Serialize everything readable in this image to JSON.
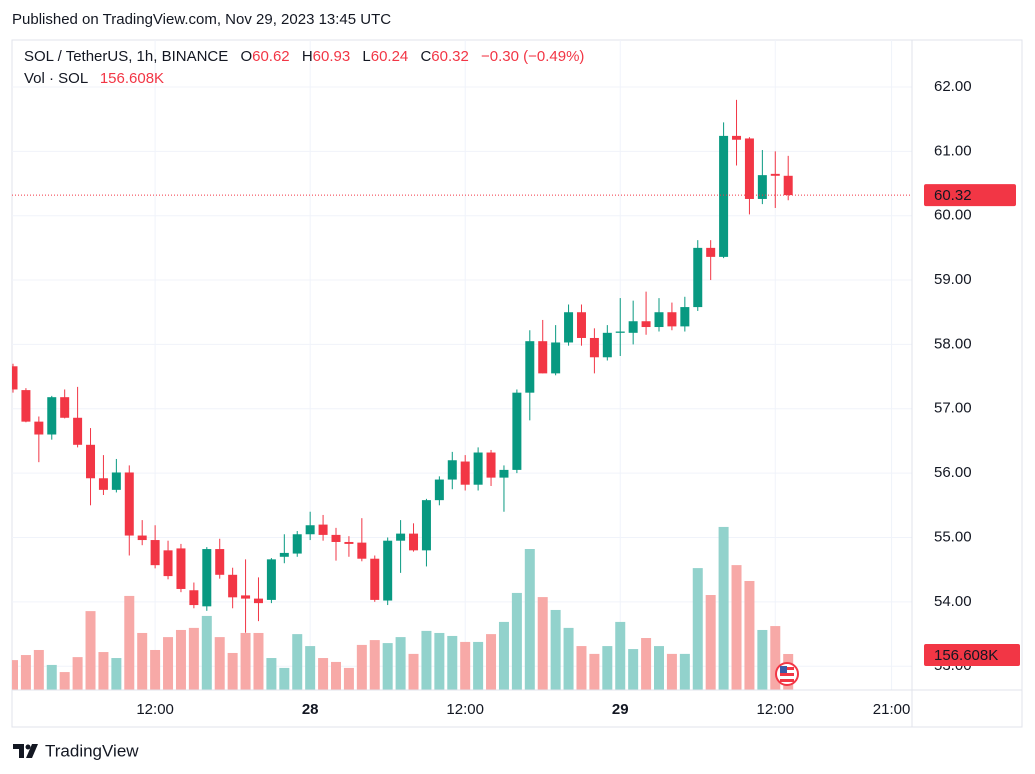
{
  "header": {
    "published": "Published on TradingView.com, Nov 29, 2023 13:45 UTC"
  },
  "footer": {
    "brand": "TradingView"
  },
  "chart_data": {
    "type": "candlestick",
    "title": "SOL / TetherUS, 1h, BINANCE",
    "ohlc_letters": [
      "O",
      "H",
      "L",
      "C"
    ],
    "change_label": "−0.30 (−0.49%)",
    "volume_title": "Vol · SOL",
    "volume_label": "156.608K",
    "categories": [
      null,
      null,
      null,
      null,
      null,
      null,
      null,
      null,
      null,
      null,
      null,
      "12:00",
      null,
      null,
      null,
      null,
      null,
      null,
      null,
      null,
      null,
      null,
      null,
      "28",
      null,
      null,
      null,
      null,
      null,
      null,
      null,
      null,
      null,
      null,
      null,
      "12:00",
      null,
      null,
      null,
      null,
      null,
      null,
      null,
      null,
      null,
      null,
      null,
      "29",
      null,
      null,
      null,
      null,
      null,
      null,
      null,
      null,
      null,
      null,
      null,
      "12:00",
      null,
      null,
      null,
      null,
      null,
      null,
      null,
      null,
      "21:00",
      null
    ],
    "open": [
      57.66,
      57.29,
      56.8,
      56.6,
      57.18,
      56.86,
      56.44,
      55.92,
      55.74,
      56.01,
      55.03,
      54.96,
      54.8,
      54.83,
      54.18,
      53.93,
      54.82,
      54.42,
      54.1,
      54.05,
      54.03,
      54.7,
      54.75,
      55.05,
      55.2,
      55.04,
      54.93,
      54.92,
      54.67,
      54.02,
      54.95,
      55.06,
      54.8,
      55.58,
      55.9,
      56.18,
      55.82,
      56.32,
      55.93,
      56.05,
      57.25,
      58.05,
      57.55,
      58.03,
      58.5,
      58.1,
      57.8,
      58.18,
      58.18,
      58.36,
      58.27,
      58.5,
      58.28,
      58.58,
      59.5,
      59.36,
      61.24,
      61.2,
      60.26,
      60.65,
      60.62,
      null,
      null,
      null,
      null,
      null,
      null,
      null,
      null,
      null
    ],
    "high": [
      57.7,
      57.32,
      56.88,
      57.2,
      57.3,
      57.34,
      56.7,
      56.28,
      56.22,
      56.12,
      55.27,
      55.19,
      54.95,
      54.9,
      54.3,
      54.85,
      54.98,
      54.53,
      54.66,
      54.38,
      54.68,
      55.05,
      55.1,
      55.4,
      55.35,
      55.15,
      55.02,
      55.3,
      54.72,
      55.0,
      55.27,
      55.22,
      55.6,
      55.95,
      56.33,
      56.28,
      56.4,
      56.36,
      56.12,
      57.3,
      58.22,
      58.38,
      58.3,
      58.62,
      58.62,
      58.25,
      58.3,
      58.72,
      58.68,
      58.82,
      58.72,
      58.65,
      58.74,
      59.62,
      59.62,
      61.45,
      61.8,
      61.22,
      61.02,
      61.0,
      60.93,
      null,
      null,
      null,
      null,
      null,
      null,
      null,
      null,
      null
    ],
    "low": [
      57.25,
      56.79,
      56.17,
      56.52,
      56.85,
      56.4,
      55.5,
      55.66,
      55.7,
      54.72,
      54.88,
      54.52,
      54.35,
      54.15,
      53.9,
      53.86,
      54.36,
      53.9,
      53.52,
      53.7,
      53.98,
      54.6,
      54.7,
      54.96,
      54.95,
      54.64,
      54.7,
      54.63,
      54.0,
      53.95,
      54.45,
      54.78,
      54.55,
      55.5,
      55.75,
      55.73,
      55.73,
      55.8,
      55.4,
      56.0,
      56.82,
      57.55,
      57.52,
      57.98,
      57.98,
      57.55,
      57.75,
      57.82,
      58.0,
      58.15,
      58.2,
      58.22,
      58.2,
      58.52,
      59.0,
      59.34,
      60.78,
      60.02,
      60.18,
      60.12,
      60.24,
      null,
      null,
      null,
      null,
      null,
      null,
      null,
      null,
      null
    ],
    "close": [
      57.3,
      56.8,
      56.6,
      57.18,
      56.86,
      56.44,
      55.92,
      55.74,
      56.01,
      55.03,
      54.96,
      54.57,
      54.4,
      54.2,
      53.95,
      54.82,
      54.42,
      54.07,
      54.05,
      53.98,
      54.66,
      54.76,
      55.05,
      55.19,
      55.04,
      54.93,
      54.9,
      54.67,
      54.03,
      54.95,
      55.06,
      54.8,
      55.58,
      55.9,
      56.2,
      55.82,
      56.32,
      55.93,
      56.05,
      57.25,
      58.05,
      57.55,
      58.03,
      58.5,
      58.1,
      57.8,
      58.18,
      58.2,
      58.36,
      58.27,
      58.5,
      58.28,
      58.58,
      59.5,
      59.36,
      61.24,
      61.18,
      60.26,
      60.63,
      60.62,
      60.32,
      null,
      null,
      null,
      null,
      null,
      null,
      null,
      null,
      null
    ],
    "volume": [
      130000,
      152000,
      174000,
      109000,
      78000,
      143000,
      343000,
      165000,
      139000,
      409000,
      248000,
      174000,
      230000,
      261000,
      270000,
      322000,
      230000,
      161000,
      248000,
      248000,
      139000,
      96000,
      243000,
      191000,
      139000,
      122000,
      96000,
      196000,
      217000,
      204000,
      230000,
      157000,
      257000,
      248000,
      235000,
      209000,
      209000,
      243000,
      296000,
      422000,
      613000,
      404000,
      348000,
      270000,
      191000,
      157000,
      191000,
      296000,
      178000,
      226000,
      191000,
      157000,
      157000,
      530000,
      413000,
      709000,
      543000,
      474000,
      261000,
      278000,
      156608,
      null,
      null,
      null,
      null,
      null,
      null,
      null,
      null,
      null
    ],
    "up_color": "#089981",
    "down_color": "#f23645",
    "volume_up_color": "#92d2cc",
    "volume_down_color": "#f7a9a7",
    "ylim": [
      52.63,
      62.73
    ],
    "yticks": [
      {
        "value": 53,
        "label": "53.00"
      },
      {
        "value": 54,
        "label": "54.00"
      },
      {
        "value": 55,
        "label": "55.00"
      },
      {
        "value": 56,
        "label": "56.00"
      },
      {
        "value": 57,
        "label": "57.00"
      },
      {
        "value": 58,
        "label": "58.00"
      },
      {
        "value": 59,
        "label": "59.00"
      },
      {
        "value": 60,
        "label": "60.00"
      },
      {
        "value": 61,
        "label": "61.00"
      },
      {
        "value": 62,
        "label": "62.00"
      }
    ],
    "volume_lim": [
      0,
      1000000
    ],
    "grid": true
  }
}
